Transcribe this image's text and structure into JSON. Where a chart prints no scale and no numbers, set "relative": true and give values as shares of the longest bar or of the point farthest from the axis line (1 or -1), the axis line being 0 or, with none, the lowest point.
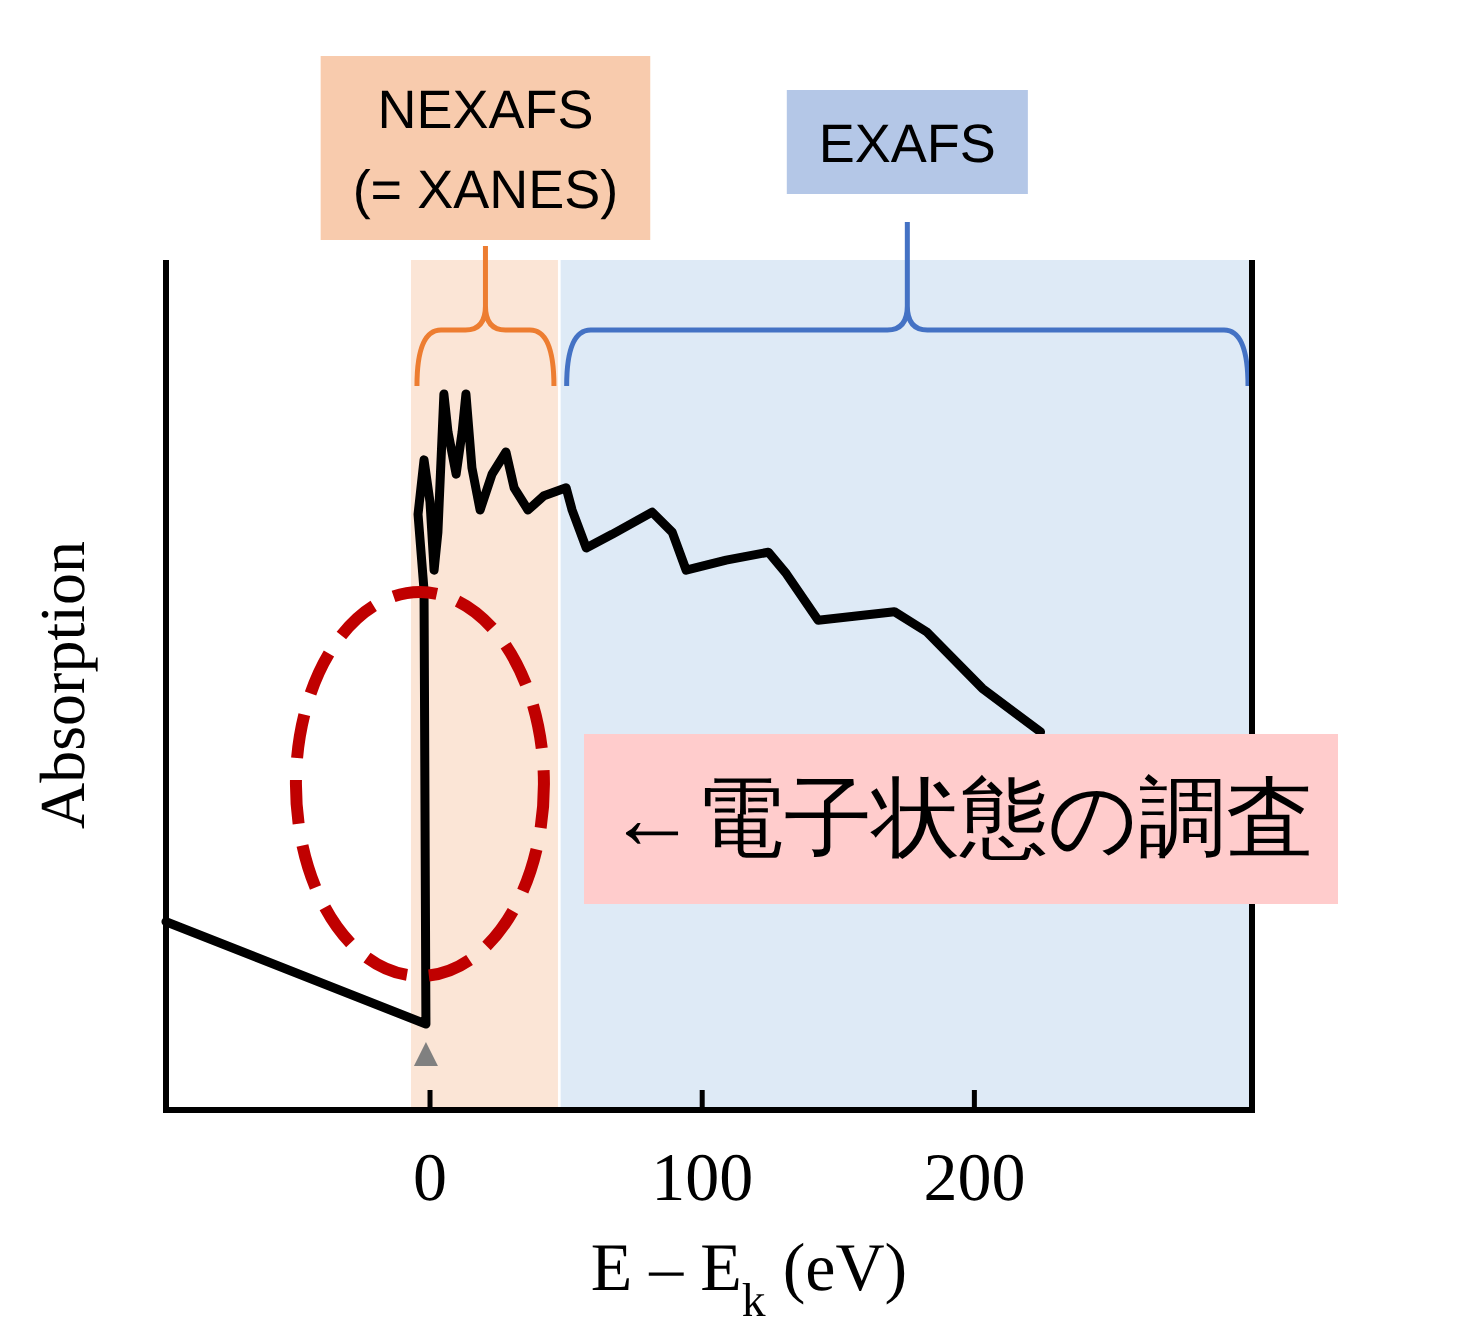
{
  "chart_data": {
    "type": "line",
    "relative": true,
    "xlabel": "E – E$_{k}$ (eV)",
    "ylabel": "Absorption",
    "xlim": [
      -97,
      302
    ],
    "xticks": [
      0,
      100,
      200
    ],
    "tick_labels": "x",
    "line_style": "solid",
    "series": [
      {
        "color": "#000000",
        "x": [
          -97,
          -1.5,
          -2.2,
          -4.4,
          -2.2,
          0,
          1.5,
          2.9,
          5.1,
          6.6,
          9.6,
          11.8,
          13.2,
          15.4,
          18.4,
          22.8,
          27.9,
          30.9,
          36,
          41.9,
          50,
          52.2,
          57.4,
          66.9,
          81.6,
          89,
          94.1,
          108.8,
          124.3,
          130.9,
          142.6,
          170.6,
          182.4,
          202.9,
          224.3
        ],
        "values": [
          0.263,
          0.12,
          0.726,
          0.832,
          0.908,
          0.849,
          0.754,
          0.807,
          1.0,
          0.947,
          0.888,
          0.947,
          1.0,
          0.897,
          0.838,
          0.888,
          0.919,
          0.869,
          0.838,
          0.858,
          0.869,
          0.838,
          0.785,
          0.804,
          0.835,
          0.807,
          0.754,
          0.768,
          0.779,
          0.749,
          0.684,
          0.696,
          0.668,
          0.589,
          0.528
        ]
      }
    ],
    "bands": [
      {
        "axis": "x",
        "from": -7,
        "to": 47,
        "label": "NEXAFS\n(= XANES)",
        "color": "#fbe5d6"
      },
      {
        "axis": "x",
        "from": 48,
        "to": 302,
        "label": "EXAFS",
        "color": "#deeaf6"
      }
    ],
    "annotations": [
      "←電子状態の調査"
    ]
  }
}
